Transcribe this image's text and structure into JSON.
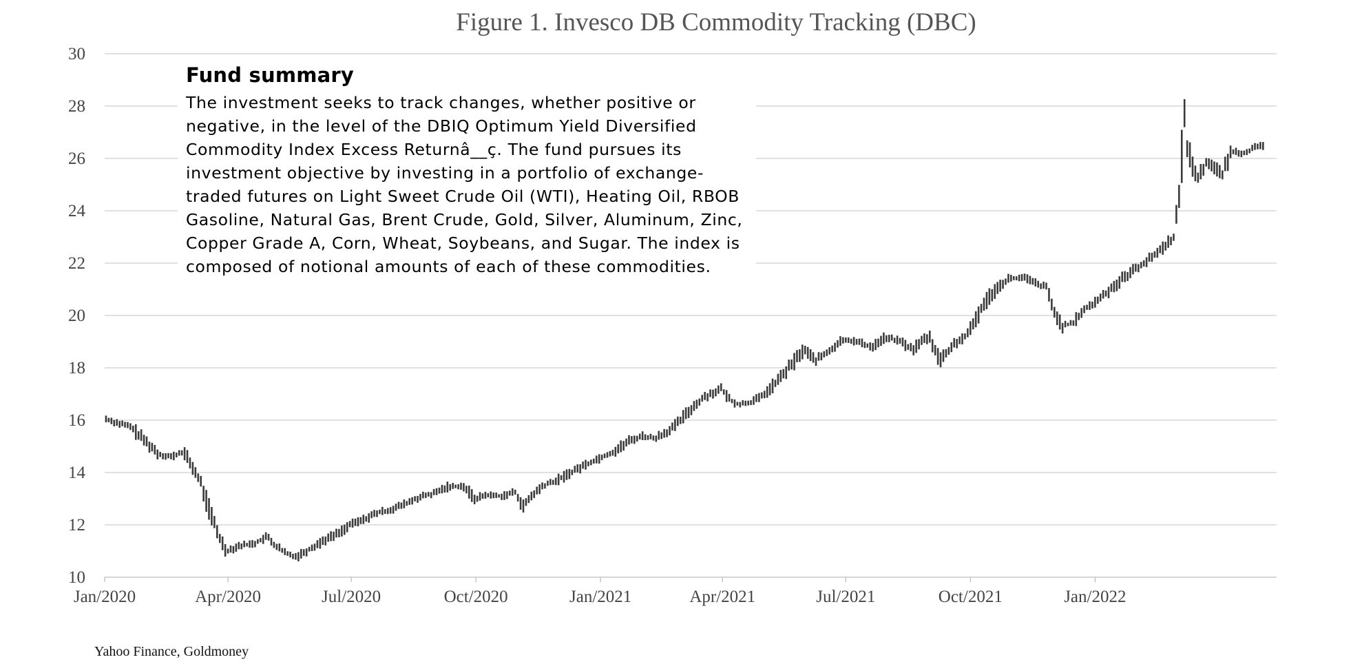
{
  "chart_data": {
    "type": "ohlc",
    "title": "Figure 1. Invesco DB Commodity Tracking (DBC)",
    "xlabel": "",
    "ylabel": "",
    "ylim": [
      10,
      30
    ],
    "yticks": [
      10,
      12,
      14,
      16,
      18,
      20,
      22,
      24,
      26,
      28,
      30
    ],
    "xlim": [
      "2020-01-01",
      "2022-05-15"
    ],
    "xticks": [
      {
        "date": "2020-01-01",
        "label": "Jan/2020"
      },
      {
        "date": "2020-04-01",
        "label": "Apr/2020"
      },
      {
        "date": "2020-07-01",
        "label": "Jul/2020"
      },
      {
        "date": "2020-10-01",
        "label": "Oct/2020"
      },
      {
        "date": "2021-01-01",
        "label": "Jan/2021"
      },
      {
        "date": "2021-04-01",
        "label": "Apr/2021"
      },
      {
        "date": "2021-07-01",
        "label": "Jul/2021"
      },
      {
        "date": "2021-10-01",
        "label": "Oct/2021"
      },
      {
        "date": "2022-01-01",
        "label": "Jan/2022"
      }
    ],
    "grid": true,
    "bar_color": "#3a3a3a",
    "series": [
      {
        "points": [
          [
            "2020-01-02",
            16.05
          ],
          [
            "2020-01-10",
            15.9
          ],
          [
            "2020-01-20",
            15.75
          ],
          [
            "2020-01-31",
            15.2
          ],
          [
            "2020-02-10",
            14.7
          ],
          [
            "2020-02-20",
            14.6
          ],
          [
            "2020-02-28",
            14.8
          ],
          [
            "2020-03-06",
            14.2
          ],
          [
            "2020-03-12",
            13.6
          ],
          [
            "2020-03-18",
            12.6
          ],
          [
            "2020-03-25",
            11.6
          ],
          [
            "2020-03-31",
            11.0
          ],
          [
            "2020-04-09",
            11.2
          ],
          [
            "2020-04-21",
            11.3
          ],
          [
            "2020-04-30",
            11.55
          ],
          [
            "2020-05-06",
            11.2
          ],
          [
            "2020-05-14",
            10.9
          ],
          [
            "2020-05-22",
            10.8
          ],
          [
            "2020-06-01",
            11.1
          ],
          [
            "2020-06-12",
            11.45
          ],
          [
            "2020-06-22",
            11.7
          ],
          [
            "2020-06-30",
            12.0
          ],
          [
            "2020-07-10",
            12.2
          ],
          [
            "2020-07-20",
            12.45
          ],
          [
            "2020-07-31",
            12.6
          ],
          [
            "2020-08-10",
            12.8
          ],
          [
            "2020-08-20",
            13.05
          ],
          [
            "2020-08-31",
            13.2
          ],
          [
            "2020-09-10",
            13.45
          ],
          [
            "2020-09-21",
            13.5
          ],
          [
            "2020-09-30",
            13.0
          ],
          [
            "2020-10-09",
            13.15
          ],
          [
            "2020-10-20",
            13.1
          ],
          [
            "2020-10-30",
            13.25
          ],
          [
            "2020-11-05",
            12.7
          ],
          [
            "2020-11-12",
            13.15
          ],
          [
            "2020-11-20",
            13.5
          ],
          [
            "2020-11-30",
            13.7
          ],
          [
            "2020-12-10",
            14.0
          ],
          [
            "2020-12-21",
            14.3
          ],
          [
            "2020-12-31",
            14.55
          ],
          [
            "2021-01-11",
            14.8
          ],
          [
            "2021-01-22",
            15.2
          ],
          [
            "2021-02-01",
            15.4
          ],
          [
            "2021-02-10",
            15.3
          ],
          [
            "2021-02-22",
            15.65
          ],
          [
            "2021-03-01",
            16.0
          ],
          [
            "2021-03-10",
            16.5
          ],
          [
            "2021-03-19",
            16.9
          ],
          [
            "2021-03-31",
            17.2
          ],
          [
            "2021-04-06",
            16.8
          ],
          [
            "2021-04-13",
            16.6
          ],
          [
            "2021-04-22",
            16.7
          ],
          [
            "2021-04-30",
            16.9
          ],
          [
            "2021-05-10",
            17.4
          ],
          [
            "2021-05-20",
            18.0
          ],
          [
            "2021-05-31",
            18.7
          ],
          [
            "2021-06-09",
            18.3
          ],
          [
            "2021-06-18",
            18.6
          ],
          [
            "2021-06-30",
            19.1
          ],
          [
            "2021-07-09",
            19.0
          ],
          [
            "2021-07-20",
            18.8
          ],
          [
            "2021-07-30",
            19.15
          ],
          [
            "2021-08-09",
            19.05
          ],
          [
            "2021-08-19",
            18.7
          ],
          [
            "2021-08-31",
            19.2
          ],
          [
            "2021-09-09",
            18.3
          ],
          [
            "2021-09-20",
            18.95
          ],
          [
            "2021-09-30",
            19.3
          ],
          [
            "2021-10-08",
            20.2
          ],
          [
            "2021-10-19",
            21.0
          ],
          [
            "2021-10-29",
            21.4
          ],
          [
            "2021-11-09",
            21.45
          ],
          [
            "2021-11-19",
            21.2
          ],
          [
            "2021-11-26",
            21.1
          ],
          [
            "2021-12-01",
            20.2
          ],
          [
            "2021-12-08",
            19.6
          ],
          [
            "2021-12-16",
            19.7
          ],
          [
            "2021-12-23",
            20.2
          ],
          [
            "2021-12-31",
            20.45
          ],
          [
            "2022-01-10",
            20.9
          ],
          [
            "2022-01-21",
            21.4
          ],
          [
            "2022-01-31",
            21.8
          ],
          [
            "2022-02-09",
            22.1
          ],
          [
            "2022-02-18",
            22.5
          ],
          [
            "2022-02-28",
            23.0
          ],
          [
            "2022-03-04",
            24.5
          ],
          [
            "2022-03-08",
            27.6
          ],
          [
            "2022-03-10",
            26.5
          ],
          [
            "2022-03-17",
            25.2
          ],
          [
            "2022-03-25",
            25.9
          ],
          [
            "2022-04-05",
            25.4
          ],
          [
            "2022-04-12",
            26.3
          ],
          [
            "2022-04-20",
            26.2
          ],
          [
            "2022-04-29",
            26.4
          ],
          [
            "2022-05-06",
            26.5
          ]
        ]
      }
    ],
    "source": "Yahoo Finance, Goldmoney"
  },
  "summary": {
    "title": "Fund summary",
    "body": "The investment seeks to track changes, whether positive or negative, in the level of the DBIQ Optimum Yield Diversified Commodity Index Excess Returnâ__ç. The fund pursues its investment objective by investing in a portfolio of exchange-traded futures on Light Sweet Crude Oil (WTI), Heating Oil, RBOB Gasoline, Natural Gas, Brent Crude, Gold, Silver, Aluminum, Zinc, Copper Grade A, Corn, Wheat, Soybeans, and Sugar. The index is composed of notional amounts of each of these commodities."
  }
}
